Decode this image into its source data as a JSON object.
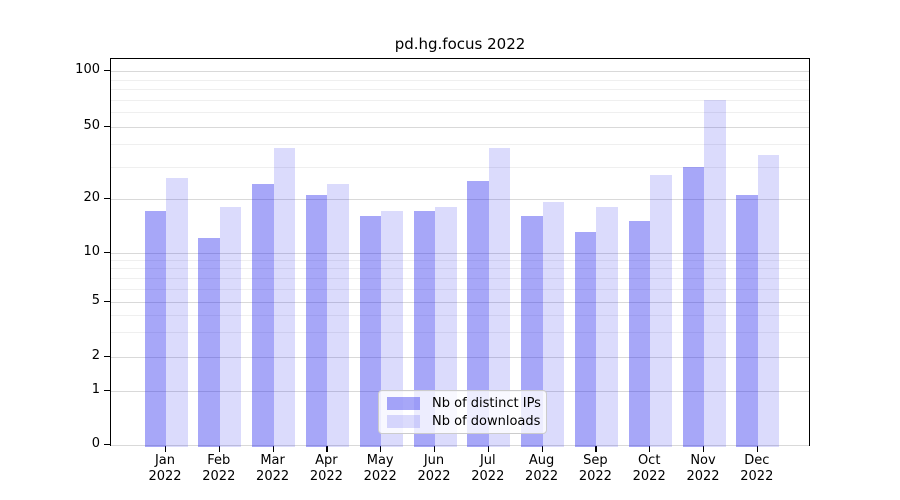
{
  "chart_data": {
    "type": "bar",
    "title": "pd.hg.focus 2022",
    "categories": [
      "Jan",
      "Feb",
      "Mar",
      "Apr",
      "May",
      "Jun",
      "Jul",
      "Aug",
      "Sep",
      "Oct",
      "Nov",
      "Dec"
    ],
    "category_year": "2022",
    "series": [
      {
        "name": "Nb of distinct IPs",
        "color": "rgba(34,34,238,0.40)",
        "values": [
          17,
          12,
          24,
          21,
          16,
          17,
          25,
          16,
          13,
          15,
          30,
          21
        ]
      },
      {
        "name": "Nb of downloads",
        "color": "rgba(34,34,238,0.16)",
        "values": [
          26,
          18,
          38,
          24,
          17,
          18,
          38,
          19,
          18,
          27,
          70,
          35
        ]
      }
    ],
    "xlabel": "",
    "ylabel": "",
    "y_scale": "symlog",
    "y_ticks": [
      0,
      1,
      2,
      5,
      10,
      20,
      50,
      100
    ],
    "y_minor_ticks": [
      3,
      4,
      6,
      7,
      8,
      9,
      30,
      40,
      60,
      70,
      80,
      90
    ],
    "ylim": [
      0,
      130
    ],
    "grid": "on",
    "legend_position": "lower center"
  }
}
